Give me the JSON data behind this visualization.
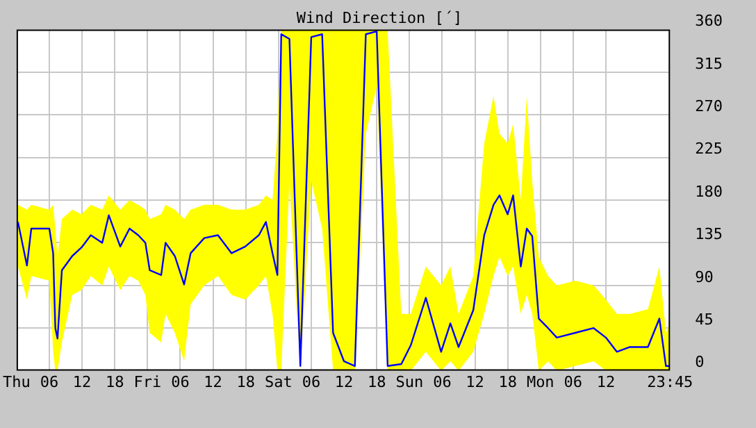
{
  "chart_data": {
    "type": "line",
    "title": "Wind Direction [´]",
    "xlim": [
      "--01-02T00:00",
      "--01-06T23:45"
    ],
    "xticks": [
      {
        "value": "--01-02T00:00",
        "label": "Thu"
      },
      {
        "value": "--01-02T06:00",
        "label": "06"
      },
      {
        "value": "--01-02T12:00",
        "label": "12"
      },
      {
        "value": "--01-02T18:00",
        "label": "18"
      },
      {
        "value": "--01-03T00:00",
        "label": "Fri"
      },
      {
        "value": "--01-03T06:00",
        "label": "06"
      },
      {
        "value": "--01-03T12:00",
        "label": "12"
      },
      {
        "value": "--01-03T18:00",
        "label": "18"
      },
      {
        "value": "--01-04T00:00",
        "label": "Sat"
      },
      {
        "value": "--01-04T06:00",
        "label": "06"
      },
      {
        "value": "--01-04T12:00",
        "label": "12"
      },
      {
        "value": "--01-04T18:00",
        "label": "18"
      },
      {
        "value": "--01-05T00:00",
        "label": "Sun"
      },
      {
        "value": "--01-05T06:00",
        "label": "06"
      },
      {
        "value": "--01-05T12:00",
        "label": "12"
      },
      {
        "value": "--01-05T18:00",
        "label": "18"
      },
      {
        "value": "--01-06T00:00",
        "label": "Mon"
      },
      {
        "value": "--01-06T06:00",
        "label": "06"
      },
      {
        "value": "--01-06T12:00",
        "label": "12"
      },
      {
        "value": "--01-06T23:45",
        "label": "23:45"
      }
    ],
    "x": [
      "--01-02T00:15",
      "--01-02T01:54",
      "--01-02T02:42",
      "--01-02T06:00",
      "--01-02T06:42",
      "--01-02T07:06",
      "--01-02T07:30",
      "--01-02T08:18",
      "--01-02T10:12",
      "--01-02T11:54",
      "--01-02T13:36",
      "--01-02T15:42",
      "--01-02T16:54",
      "--01-02T19:00",
      "--01-02T20:42",
      "--01-02T22:18",
      "--01-02T23:36",
      "--01-03T00:24",
      "--01-03T02:30",
      "--01-03T03:18",
      "--01-03T05:00",
      "--01-03T06:42",
      "--01-03T07:54",
      "--01-03T10:24",
      "--01-03T12:54",
      "--01-03T15:24",
      "--01-03T17:54",
      "--01-03T20:24",
      "--01-03T21:42",
      "--01-03T22:54",
      "--01-03T23:48",
      "--01-04T00:30",
      "--01-04T02:00",
      "--01-04T04:00",
      "--01-04T06:00",
      "--01-04T08:00",
      "--01-04T10:00",
      "--01-04T12:00",
      "--01-04T14:00",
      "--01-04T16:00",
      "--01-04T18:00",
      "--01-04T20:00",
      "--01-04T22:30",
      "--01-05T00:15",
      "--01-05T03:00",
      "--01-05T05:48",
      "--01-05T07:30",
      "--01-05T09:00",
      "--01-05T11:42",
      "--01-05T13:42",
      "--01-05T15:24",
      "--01-05T16:30",
      "--01-05T18:00",
      "--01-05T19:00",
      "--01-05T20:24",
      "--01-05T21:30",
      "--01-05T22:30",
      "--01-05T23:42",
      "--01-06T01:24",
      "--01-06T03:00",
      "--01-06T06:24",
      "--01-06T09:45",
      "--01-06T12:00",
      "--01-06T14:00",
      "--01-06T16:24",
      "--01-06T19:42",
      "--01-06T21:48",
      "--01-06T23:00",
      "--01-06T23:45"
    ],
    "ylim": [
      0,
      360
    ],
    "yticks": [
      0,
      45,
      90,
      135,
      180,
      225,
      270,
      315,
      360
    ],
    "grid": true,
    "legend": false,
    "marker": "none",
    "line_style": "solid",
    "series": [
      {
        "color": "#0000ff",
        "values": [
          157,
          111,
          150,
          150,
          124,
          45,
          34,
          106,
          121,
          130,
          143,
          135,
          164,
          131,
          150,
          143,
          135,
          106,
          101,
          135,
          121,
          91,
          124,
          140,
          143,
          124,
          131,
          143,
          157,
          124,
          101,
          355,
          350,
          5,
          352,
          355,
          40,
          10,
          5,
          355,
          358,
          5,
          7,
          27,
          77,
          20,
          50,
          25,
          64,
          143,
          175,
          185,
          165,
          185,
          110,
          150,
          142,
          55,
          45,
          35,
          40,
          45,
          35,
          20,
          25,
          25,
          55,
          5,
          5
        ],
        "upper": [
          175,
          170,
          175,
          170,
          175,
          150,
          120,
          160,
          170,
          165,
          175,
          170,
          185,
          170,
          180,
          175,
          170,
          160,
          165,
          175,
          170,
          160,
          170,
          175,
          175,
          170,
          170,
          175,
          185,
          180,
          250,
          360,
          360,
          360,
          360,
          360,
          360,
          360,
          360,
          360,
          360,
          360,
          60,
          60,
          110,
          90,
          110,
          60,
          100,
          240,
          290,
          250,
          240,
          260,
          180,
          290,
          200,
          120,
          100,
          90,
          95,
          90,
          75,
          60,
          60,
          65,
          110,
          40,
          50
        ],
        "lower": [
          110,
          75,
          100,
          95,
          20,
          0,
          0,
          30,
          80,
          85,
          100,
          90,
          110,
          85,
          100,
          95,
          80,
          40,
          30,
          60,
          40,
          10,
          70,
          90,
          100,
          80,
          75,
          90,
          100,
          60,
          0,
          0,
          200,
          0,
          200,
          150,
          0,
          0,
          0,
          250,
          300,
          0,
          0,
          0,
          20,
          0,
          10,
          0,
          20,
          60,
          100,
          120,
          100,
          110,
          60,
          80,
          60,
          0,
          10,
          0,
          5,
          10,
          0,
          0,
          0,
          0,
          0,
          0,
          0
        ]
      }
    ]
  }
}
